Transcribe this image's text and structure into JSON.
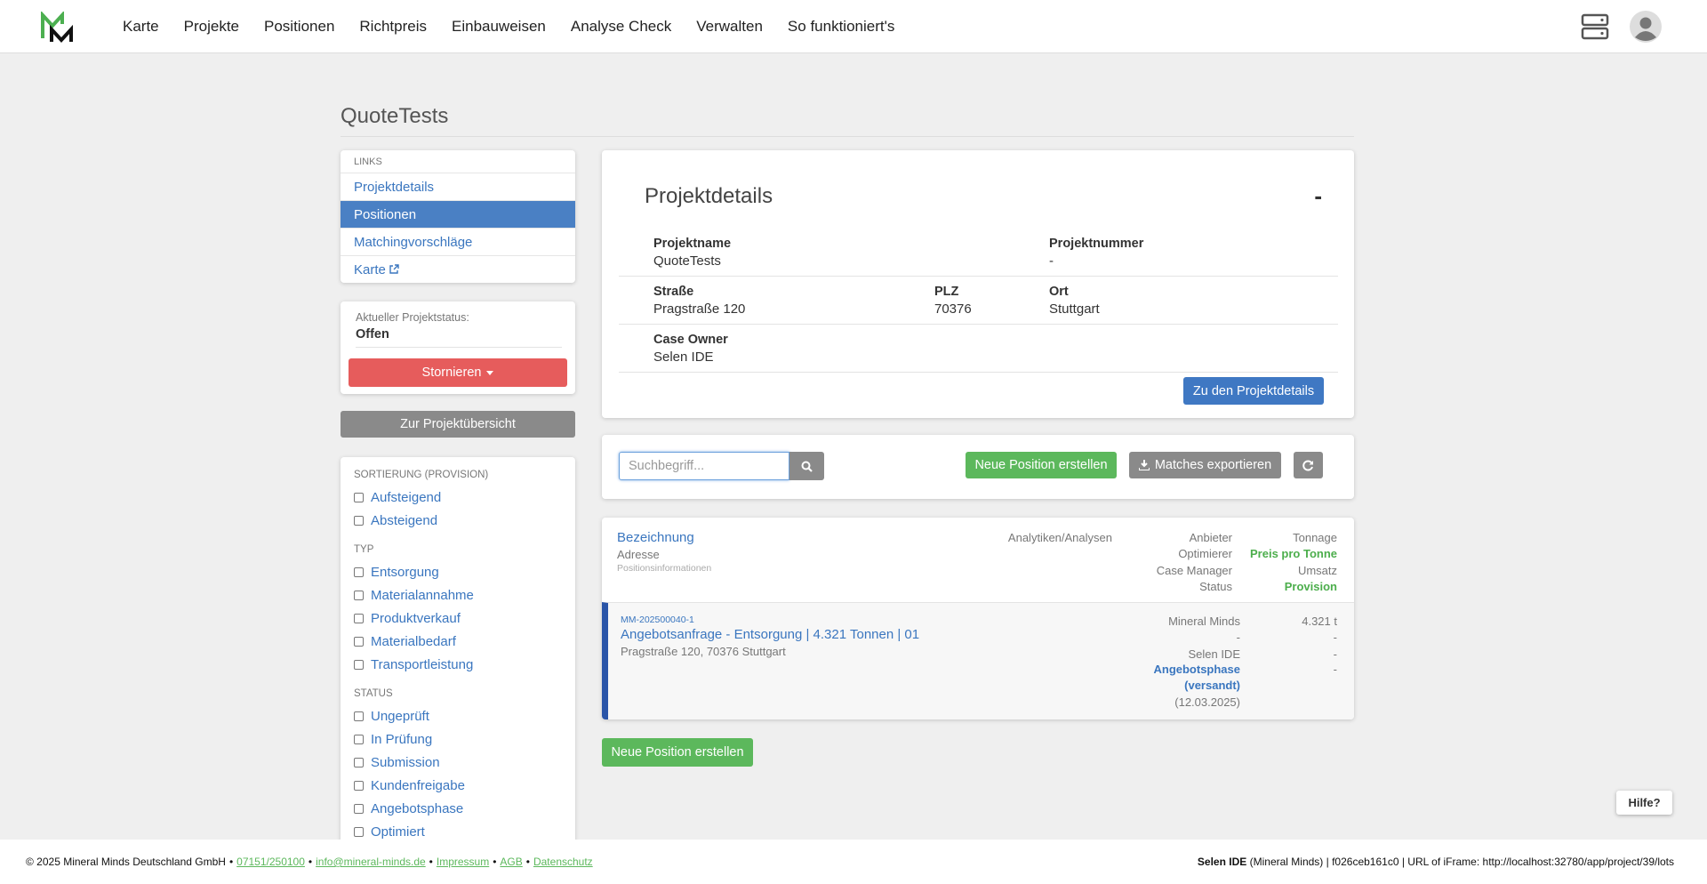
{
  "nav": {
    "items": [
      "Karte",
      "Projekte",
      "Positionen",
      "Richtpreis",
      "Einbauweisen",
      "Analyse Check",
      "Verwalten",
      "So funktioniert's"
    ]
  },
  "page_title": "QuoteTests",
  "sidebar": {
    "links_heading": "LINKS",
    "links": [
      "Projektdetails",
      "Positionen",
      "Matchingvorschläge",
      "Karte"
    ],
    "active_link": 1,
    "status_label": "Aktueller Projektstatus:",
    "status": "Offen",
    "cancel_button": "Stornieren",
    "overview_button": "Zur Projektübersicht",
    "filters": [
      {
        "heading": "SORTIERUNG (PROVISION)",
        "options": [
          "Aufsteigend",
          "Absteigend"
        ]
      },
      {
        "heading": "TYP",
        "options": [
          "Entsorgung",
          "Materialannahme",
          "Produktverkauf",
          "Materialbedarf",
          "Transportleistung"
        ]
      },
      {
        "heading": "STATUS",
        "options": [
          "Ungeprüft",
          "In Prüfung",
          "Submission",
          "Kundenfreigabe",
          "Angebotsphase",
          "Optimiert"
        ]
      }
    ]
  },
  "project_details": {
    "title": "Projektdetails",
    "collapse": "-",
    "rows": [
      [
        {
          "label": "Projektname",
          "value": "QuoteTests"
        },
        null,
        {
          "label": "Projektnummer",
          "value": "-"
        }
      ],
      [
        {
          "label": "Straße",
          "value": "Pragstraße 120"
        },
        {
          "label": "PLZ",
          "value": "70376"
        },
        {
          "label": "Ort",
          "value": "Stuttgart"
        }
      ],
      [
        {
          "label": "Case Owner",
          "value": "Selen IDE"
        },
        null,
        null
      ]
    ],
    "button": "Zu den Projektdetails"
  },
  "toolbar": {
    "search_placeholder": "Suchbegriff...",
    "new_button": "Neue Position erstellen",
    "export_button": "Matches exportieren"
  },
  "positions_table": {
    "header": {
      "name": "Bezeichnung",
      "address": "Adresse",
      "info": "Positionsinformationen",
      "analytics": "Analytiken/Analysen",
      "supplier": "Anbieter",
      "optimizer": "Optimierer",
      "case_manager": "Case Manager",
      "status": "Status",
      "tonnage": "Tonnage",
      "price_per_ton": "Preis pro Tonne",
      "revenue": "Umsatz",
      "commission": "Provision"
    },
    "rows": [
      {
        "id": "MM-202500040-1",
        "title": "Angebotsanfrage - Entsorgung | 4.321 Tonnen | 01",
        "address": "Pragstraße 120, 70376 Stuttgart",
        "supplier": "Mineral Minds",
        "optimizer": "-",
        "case_manager": "Selen IDE",
        "status": "Angebotsphase",
        "status_detail": "(versandt)",
        "status_date": "(12.03.2025)",
        "tonnage": "4.321 t",
        "price_per_ton": "-",
        "revenue": "-",
        "commission": "-"
      }
    ]
  },
  "bottom_button": "Neue Position erstellen",
  "help": "Hilfe?",
  "footer": {
    "copyright": "© 2025 Mineral Minds Deutschland GmbH",
    "separator": "•",
    "links": [
      "07151/250100",
      "info@mineral-minds.de",
      "Impressum",
      "AGB",
      "Datenschutz"
    ],
    "user": "Selen IDE",
    "session": "(Mineral Minds) | f026ceb161c0 | URL of iFrame: http://localhost:32780/app/project/39/lots"
  }
}
